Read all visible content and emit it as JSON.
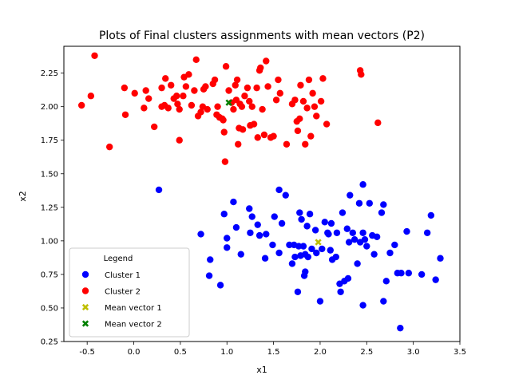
{
  "chart_data": {
    "type": "scatter",
    "title": "Plots of Final clusters assignments with mean vectors (P2)",
    "xlabel": "x1",
    "ylabel": "x2",
    "xlim": [
      -0.75,
      3.5
    ],
    "ylim": [
      0.25,
      2.45
    ],
    "xticks": [
      "-0.5",
      "0.0",
      "0.5",
      "1.0",
      "1.5",
      "2.0",
      "2.5",
      "3.0",
      "3.5"
    ],
    "yticks": [
      "0.25",
      "0.50",
      "0.75",
      "1.00",
      "1.25",
      "1.50",
      "1.75",
      "2.00",
      "2.25"
    ],
    "grid": false,
    "legend": {
      "title": "Legend",
      "placement": "lower-left"
    },
    "series": [
      {
        "name": "Cluster 1",
        "marker": "circle",
        "color": "#0000ff",
        "points": [
          [
            0.27,
            1.38
          ],
          [
            0.72,
            1.05
          ],
          [
            0.82,
            0.86
          ],
          [
            0.81,
            0.74
          ],
          [
            0.93,
            0.67
          ],
          [
            0.97,
            1.2
          ],
          [
            1.0,
            0.95
          ],
          [
            1.0,
            1.02
          ],
          [
            1.07,
            1.29
          ],
          [
            1.1,
            1.1
          ],
          [
            1.15,
            0.9
          ],
          [
            1.24,
            1.24
          ],
          [
            1.25,
            1.06
          ],
          [
            1.27,
            1.18
          ],
          [
            1.33,
            1.12
          ],
          [
            1.35,
            1.04
          ],
          [
            1.41,
            0.87
          ],
          [
            1.42,
            1.05
          ],
          [
            1.49,
            0.97
          ],
          [
            1.51,
            1.18
          ],
          [
            1.56,
            1.38
          ],
          [
            1.56,
            0.91
          ],
          [
            1.59,
            1.13
          ],
          [
            1.63,
            1.34
          ],
          [
            1.67,
            0.97
          ],
          [
            1.7,
            0.83
          ],
          [
            1.72,
            0.97
          ],
          [
            1.73,
            0.88
          ],
          [
            1.76,
            0.62
          ],
          [
            1.77,
            0.96
          ],
          [
            1.78,
            1.21
          ],
          [
            1.79,
            0.89
          ],
          [
            1.8,
            1.16
          ],
          [
            1.82,
            0.96
          ],
          [
            1.83,
            0.74
          ],
          [
            1.84,
            0.9
          ],
          [
            1.84,
            0.77
          ],
          [
            1.86,
            1.11
          ],
          [
            1.87,
            0.88
          ],
          [
            1.89,
            1.2
          ],
          [
            1.91,
            0.94
          ],
          [
            1.95,
            1.08
          ],
          [
            1.96,
            0.91
          ],
          [
            2.0,
            0.55
          ],
          [
            2.02,
            0.94
          ],
          [
            2.05,
            1.14
          ],
          [
            2.08,
            1.06
          ],
          [
            2.09,
            1.05
          ],
          [
            2.11,
            0.93
          ],
          [
            2.12,
            1.13
          ],
          [
            2.13,
            0.86
          ],
          [
            2.17,
            0.88
          ],
          [
            2.18,
            1.06
          ],
          [
            2.21,
            0.68
          ],
          [
            2.22,
            0.62
          ],
          [
            2.24,
            1.21
          ],
          [
            2.26,
            0.7
          ],
          [
            2.29,
            1.09
          ],
          [
            2.3,
            0.72
          ],
          [
            2.31,
            0.99
          ],
          [
            2.32,
            1.34
          ],
          [
            2.35,
            1.06
          ],
          [
            2.37,
            1.01
          ],
          [
            2.4,
            0.83
          ],
          [
            2.42,
            1.28
          ],
          [
            2.43,
            0.99
          ],
          [
            2.46,
            1.42
          ],
          [
            2.46,
            1.06
          ],
          [
            2.46,
            0.52
          ],
          [
            2.48,
            1.01
          ],
          [
            2.5,
            0.96
          ],
          [
            2.53,
            1.28
          ],
          [
            2.56,
            1.04
          ],
          [
            2.58,
            0.9
          ],
          [
            2.61,
            1.03
          ],
          [
            2.66,
            1.21
          ],
          [
            2.68,
            1.27
          ],
          [
            2.68,
            0.55
          ],
          [
            2.71,
            0.7
          ],
          [
            2.75,
            0.91
          ],
          [
            2.8,
            0.97
          ],
          [
            2.83,
            0.76
          ],
          [
            2.86,
            0.35
          ],
          [
            2.87,
            0.76
          ],
          [
            2.93,
            1.07
          ],
          [
            2.95,
            0.76
          ],
          [
            3.09,
            0.75
          ],
          [
            3.15,
            1.06
          ],
          [
            3.19,
            1.19
          ],
          [
            3.24,
            0.71
          ],
          [
            3.29,
            0.87
          ]
        ]
      },
      {
        "name": "Cluster 2",
        "marker": "circle",
        "color": "#ff0000",
        "points": [
          [
            -0.56,
            2.01
          ],
          [
            -0.46,
            2.08
          ],
          [
            -0.42,
            2.38
          ],
          [
            -0.26,
            1.7
          ],
          [
            -0.1,
            2.14
          ],
          [
            -0.09,
            1.94
          ],
          [
            0.01,
            2.1
          ],
          [
            0.11,
            1.99
          ],
          [
            0.13,
            2.12
          ],
          [
            0.16,
            2.06
          ],
          [
            0.22,
            1.85
          ],
          [
            0.3,
            2.14
          ],
          [
            0.3,
            2.0
          ],
          [
            0.33,
            2.01
          ],
          [
            0.34,
            2.21
          ],
          [
            0.37,
            1.99
          ],
          [
            0.4,
            2.16
          ],
          [
            0.43,
            2.06
          ],
          [
            0.46,
            2.08
          ],
          [
            0.47,
            2.02
          ],
          [
            0.49,
            1.75
          ],
          [
            0.49,
            1.98
          ],
          [
            0.53,
            2.08
          ],
          [
            0.54,
            2.22
          ],
          [
            0.56,
            2.15
          ],
          [
            0.59,
            2.24
          ],
          [
            0.62,
            2.01
          ],
          [
            0.65,
            2.12
          ],
          [
            0.67,
            2.35
          ],
          [
            0.69,
            1.93
          ],
          [
            0.72,
            1.96
          ],
          [
            0.74,
            2.0
          ],
          [
            0.75,
            2.13
          ],
          [
            0.77,
            2.15
          ],
          [
            0.79,
            1.98
          ],
          [
            0.85,
            2.17
          ],
          [
            0.87,
            2.2
          ],
          [
            0.89,
            1.94
          ],
          [
            0.9,
            2.0
          ],
          [
            0.92,
            1.92
          ],
          [
            0.95,
            1.91
          ],
          [
            0.96,
            1.9
          ],
          [
            0.97,
            1.81
          ],
          [
            0.98,
            1.59
          ],
          [
            0.99,
            2.3
          ],
          [
            1.02,
            2.12
          ],
          [
            1.05,
            2.03
          ],
          [
            1.07,
            1.98
          ],
          [
            1.09,
            2.16
          ],
          [
            1.1,
            2.05
          ],
          [
            1.11,
            2.2
          ],
          [
            1.12,
            1.72
          ],
          [
            1.13,
            1.84
          ],
          [
            1.14,
            2.02
          ],
          [
            1.16,
            2.0
          ],
          [
            1.17,
            1.83
          ],
          [
            1.19,
            2.08
          ],
          [
            1.22,
            2.14
          ],
          [
            1.24,
            2.04
          ],
          [
            1.25,
            1.86
          ],
          [
            1.27,
            2.0
          ],
          [
            1.29,
            1.87
          ],
          [
            1.32,
            2.14
          ],
          [
            1.33,
            1.77
          ],
          [
            1.35,
            2.27
          ],
          [
            1.36,
            2.29
          ],
          [
            1.38,
            1.98
          ],
          [
            1.4,
            1.79
          ],
          [
            1.42,
            2.34
          ],
          [
            1.44,
            2.15
          ],
          [
            1.47,
            1.77
          ],
          [
            1.5,
            1.78
          ],
          [
            1.53,
            2.05
          ],
          [
            1.55,
            2.2
          ],
          [
            1.57,
            2.1
          ],
          [
            1.64,
            1.72
          ],
          [
            1.7,
            2.02
          ],
          [
            1.73,
            2.05
          ],
          [
            1.75,
            1.89
          ],
          [
            1.76,
            1.82
          ],
          [
            1.78,
            1.91
          ],
          [
            1.79,
            2.16
          ],
          [
            1.82,
            2.04
          ],
          [
            1.84,
            1.72
          ],
          [
            1.86,
            1.99
          ],
          [
            1.88,
            2.2
          ],
          [
            1.9,
            1.78
          ],
          [
            1.92,
            2.1
          ],
          [
            1.94,
            2.0
          ],
          [
            1.96,
            1.93
          ],
          [
            2.01,
            2.04
          ],
          [
            2.03,
            2.21
          ],
          [
            2.07,
            1.87
          ],
          [
            2.43,
            2.27
          ],
          [
            2.44,
            2.24
          ],
          [
            2.62,
            1.88
          ]
        ]
      },
      {
        "name": "Mean vector 1",
        "marker": "x",
        "color": "#bfbf00",
        "points": [
          [
            1.98,
            0.99
          ]
        ]
      },
      {
        "name": "Mean vector 2",
        "marker": "x",
        "color": "#008000",
        "points": [
          [
            1.02,
            2.03
          ]
        ]
      }
    ]
  }
}
